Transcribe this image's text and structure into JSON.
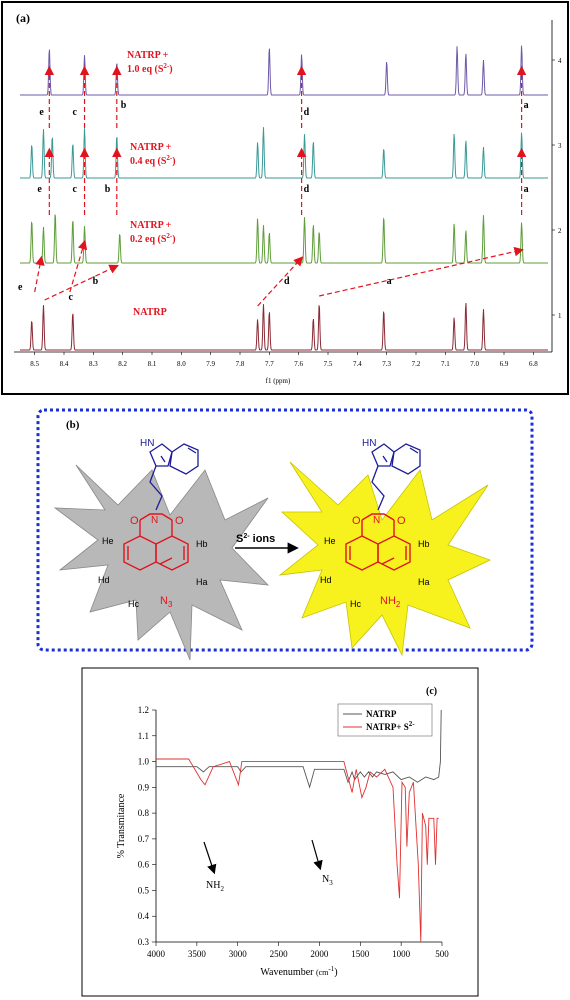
{
  "panels": {
    "a": {
      "label": "(a)",
      "xlabel": "f1 (ppm)",
      "x_ticks": [
        "8.5",
        "8.4",
        "8.3",
        "8.2",
        "8.1",
        "8.0",
        "7.9",
        "7.8",
        "7.7",
        "7.6",
        "7.5",
        "7.4",
        "7.3",
        "7.2",
        "7.1",
        "7.0",
        "6.9",
        "6.8"
      ],
      "right_ticks": [
        "4",
        "3",
        "2",
        "1"
      ],
      "spectra": [
        {
          "name": "NATRP + 1.0 eq (S²⁻)",
          "line1": "NATRP +",
          "line2": "1.0 eq (S",
          "sup": "2-",
          "tail": ")",
          "color": "#6e5aa8"
        },
        {
          "name": "NATRP + 0.4 eq (S²⁻)",
          "line1": "NATRP +",
          "line2": "0.4 eq (S",
          "sup": "2-",
          "tail": ")",
          "color": "#3a9a96"
        },
        {
          "name": "NATRP + 0.2 eq (S²⁻)",
          "line1": "NATRP +",
          "line2": "0.2 eq (S",
          "sup": "2-",
          "tail": ")",
          "color": "#5f9e3a"
        },
        {
          "name": "NATRP",
          "line1": "NATRP",
          "line2": "",
          "sup": "",
          "tail": "",
          "color": "#8a2a35"
        }
      ],
      "peak_labels": [
        "a",
        "b",
        "c",
        "d",
        "e"
      ]
    },
    "b": {
      "label": "(b)",
      "left_protons": [
        "He",
        "Hb",
        "Hd",
        "Ha",
        "Hc"
      ],
      "left_group": "N",
      "left_group_sub": "3",
      "right_protons": [
        "He",
        "Hb",
        "Hd",
        "Ha",
        "Hc"
      ],
      "right_group": "NH",
      "right_group_sub": "2",
      "indole_nh": "HN",
      "imide_n": "N",
      "carbonyl_o": "O",
      "arrow_label": "S",
      "arrow_label_sup": "2-",
      "arrow_label_tail": " ions",
      "colors": {
        "left_star": "#b8b8b8",
        "right_star": "#f7f21e",
        "naphthalimide": "#e0141e",
        "indole": "#1c1c9a",
        "frame": "#1a2fd6"
      }
    },
    "c": {
      "label": "(c)",
      "annotation_nh2": "NH",
      "annotation_nh2_sub": "2",
      "annotation_n3": "N",
      "annotation_n3_sub": "3"
    }
  },
  "chart_data": [
    {
      "type": "line",
      "title": "",
      "xlabel": "f1 (ppm)",
      "xlim": [
        8.55,
        6.75
      ],
      "reversed_x": true,
      "right_axis_ticks": [
        1,
        2,
        3,
        4
      ],
      "series": [
        {
          "name": "NATRP",
          "peaks_ppm": [
            8.51,
            8.47,
            8.37,
            7.74,
            7.72,
            7.7,
            7.55,
            7.53,
            7.31,
            7.07,
            7.03,
            6.97
          ]
        },
        {
          "name": "NATRP + 0.2 eq (S2-)",
          "peaks_ppm": [
            8.51,
            8.47,
            8.43,
            8.37,
            8.33,
            8.21,
            7.74,
            7.72,
            7.7,
            7.58,
            7.55,
            7.53,
            7.31,
            7.07,
            7.03,
            6.97,
            6.84
          ]
        },
        {
          "name": "NATRP + 0.4 eq (S2-)",
          "peaks_ppm": [
            8.51,
            8.47,
            8.44,
            8.37,
            8.33,
            8.22,
            7.74,
            7.72,
            7.58,
            7.55,
            7.31,
            7.07,
            7.03,
            6.97,
            6.84
          ]
        },
        {
          "name": "NATRP + 1.0 eq (S2-)",
          "peaks_ppm": [
            8.45,
            8.33,
            8.22,
            7.7,
            7.59,
            7.3,
            7.06,
            7.03,
            6.97,
            6.84
          ]
        }
      ]
    },
    {
      "type": "line",
      "title": "",
      "xlabel": "Wavenumber (cm-1)",
      "ylabel": "% Transmitance",
      "xlim": [
        4000,
        500
      ],
      "ylim": [
        0.3,
        1.2
      ],
      "x_ticks": [
        4000,
        3500,
        3000,
        2500,
        2000,
        1500,
        1000,
        500
      ],
      "y_ticks": [
        0.3,
        0.4,
        0.5,
        0.6,
        0.7,
        0.8,
        0.9,
        1.0,
        1.1,
        1.2
      ],
      "legend_position": "top-right",
      "series": [
        {
          "name": "NATRP",
          "color": "#555555",
          "points": [
            [
              4000,
              0.98
            ],
            [
              3500,
              0.98
            ],
            [
              3420,
              0.96
            ],
            [
              3350,
              0.98
            ],
            [
              3000,
              0.98
            ],
            [
              2960,
              0.96
            ],
            [
              2900,
              0.98
            ],
            [
              2200,
              0.98
            ],
            [
              2120,
              0.9
            ],
            [
              2060,
              0.97
            ],
            [
              1700,
              0.97
            ],
            [
              1650,
              0.92
            ],
            [
              1600,
              0.96
            ],
            [
              1570,
              0.93
            ],
            [
              1500,
              0.96
            ],
            [
              1450,
              0.94
            ],
            [
              1400,
              0.96
            ],
            [
              1350,
              0.94
            ],
            [
              1300,
              0.96
            ],
            [
              1200,
              0.95
            ],
            [
              1100,
              0.96
            ],
            [
              1000,
              0.93
            ],
            [
              900,
              0.94
            ],
            [
              800,
              0.92
            ],
            [
              700,
              0.94
            ],
            [
              600,
              0.93
            ],
            [
              540,
              0.94
            ],
            [
              520,
              1.0
            ],
            [
              510,
              1.2
            ]
          ]
        },
        {
          "name": "NATRP+ S2-",
          "color": "#e03030",
          "points": [
            [
              4000,
              1.01
            ],
            [
              3600,
              1.01
            ],
            [
              3450,
              0.93
            ],
            [
              3400,
              0.91
            ],
            [
              3300,
              0.98
            ],
            [
              3100,
              1.0
            ],
            [
              2990,
              0.91
            ],
            [
              2950,
              1.0
            ],
            [
              2500,
              1.0
            ],
            [
              1700,
              1.0
            ],
            [
              1600,
              0.88
            ],
            [
              1550,
              0.97
            ],
            [
              1480,
              0.86
            ],
            [
              1430,
              0.9
            ],
            [
              1380,
              0.96
            ],
            [
              1300,
              0.94
            ],
            [
              1200,
              0.97
            ],
            [
              1100,
              0.9
            ],
            [
              1050,
              0.6
            ],
            [
              1020,
              0.47
            ],
            [
              990,
              0.92
            ],
            [
              950,
              0.9
            ],
            [
              930,
              0.67
            ],
            [
              900,
              0.88
            ],
            [
              850,
              0.92
            ],
            [
              790,
              0.6
            ],
            [
              760,
              0.3
            ],
            [
              740,
              0.8
            ],
            [
              700,
              0.75
            ],
            [
              680,
              0.6
            ],
            [
              660,
              0.78
            ],
            [
              600,
              0.78
            ],
            [
              580,
              0.6
            ],
            [
              560,
              0.78
            ],
            [
              540,
              0.78
            ]
          ]
        }
      ]
    }
  ]
}
